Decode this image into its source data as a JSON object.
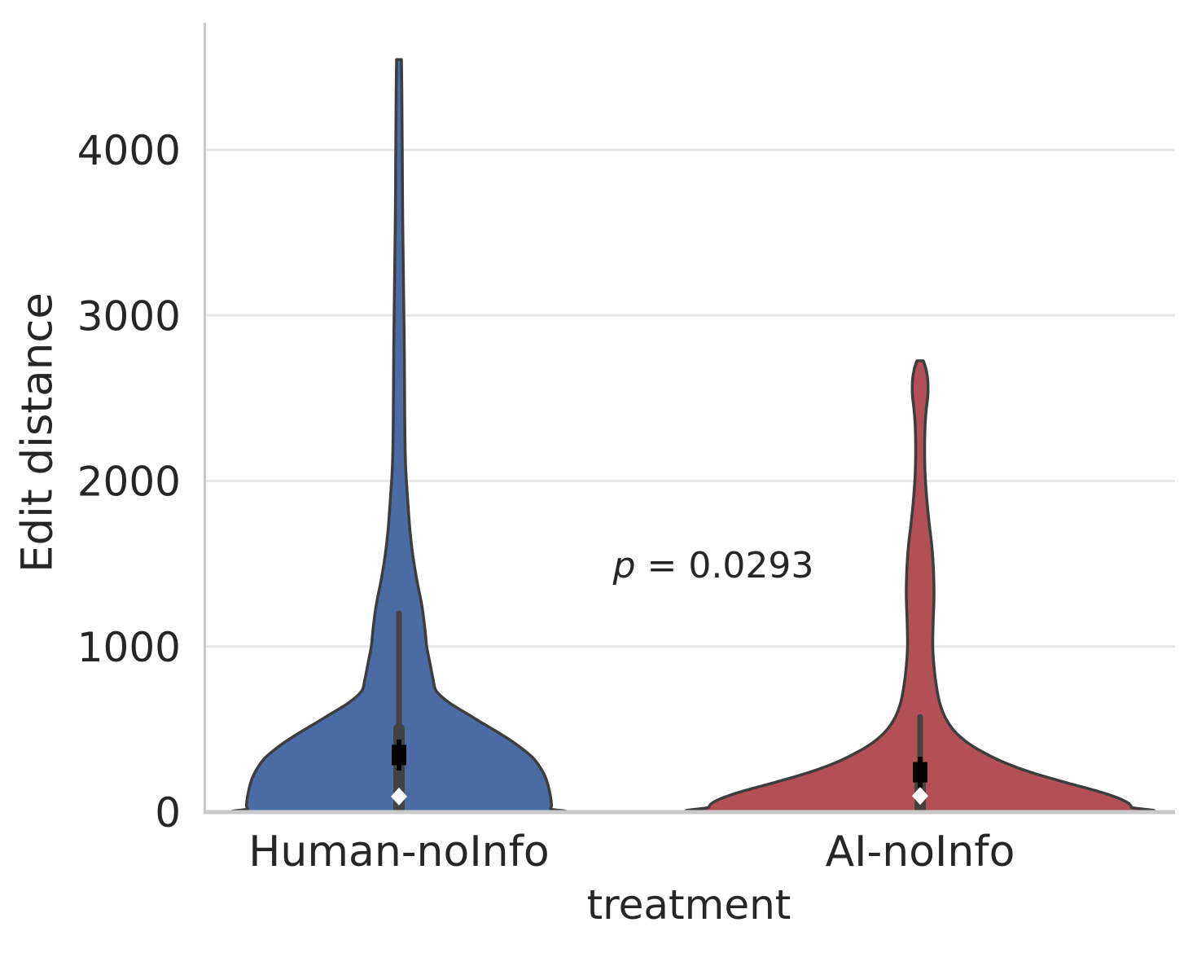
{
  "chart_data": {
    "type": "violin",
    "title": "",
    "xlabel": "treatment",
    "ylabel": "Edit distance",
    "categories": [
      "Human-noInfo",
      "AI-noInfo"
    ],
    "yticks": [
      0,
      1000,
      2000,
      3000,
      4000
    ],
    "ytick_labels": [
      "0",
      "1000",
      "2000",
      "3000",
      "4000"
    ],
    "ylim": [
      0,
      4768
    ],
    "grid": "horizontal",
    "legend": "none",
    "annotation": {
      "variable": "p",
      "rest": " = 0.0293",
      "p_value": 0.0293
    },
    "colors": {
      "outline": "#3d3d3d",
      "box": "#424242",
      "whisker": "#424242",
      "grid": "#e7e7e7",
      "spine": "#c9c9c9",
      "text": "#262626",
      "mean_marker": "#000000",
      "median_marker": "#ffffff",
      "background": "#ffffff"
    },
    "series": [
      {
        "name": "Human-noInfo",
        "fill_color": "#4a6ba3",
        "stats": {
          "min": 0,
          "max": 4546,
          "whisker_top": 1200,
          "box_top": 536,
          "box_bottom": 0,
          "mean": 345,
          "median": 94
        },
        "density_profile": [
          [
            4546,
            3
          ],
          [
            4350,
            3.5
          ],
          [
            4000,
            4
          ],
          [
            3600,
            4.5
          ],
          [
            3200,
            5.5
          ],
          [
            2800,
            6.5
          ],
          [
            2400,
            7
          ],
          [
            2100,
            8
          ],
          [
            1900,
            10.5
          ],
          [
            1700,
            13.5
          ],
          [
            1550,
            17
          ],
          [
            1400,
            22
          ],
          [
            1250,
            28
          ],
          [
            1100,
            32
          ],
          [
            1000,
            34
          ],
          [
            900,
            38
          ],
          [
            800,
            42
          ],
          [
            730,
            46
          ],
          [
            660,
            62
          ],
          [
            590,
            85
          ],
          [
            530,
            105
          ],
          [
            480,
            122
          ],
          [
            430,
            138
          ],
          [
            380,
            152
          ],
          [
            330,
            164
          ],
          [
            280,
            172
          ],
          [
            230,
            178
          ],
          [
            180,
            182
          ],
          [
            120,
            185
          ],
          [
            60,
            187
          ],
          [
            20,
            186
          ],
          [
            0,
            176
          ]
        ]
      },
      {
        "name": "AI-noInfo",
        "fill_color": "#b25055",
        "stats": {
          "min": 0,
          "max": 2726,
          "whisker_top": 575,
          "box_top": 305,
          "box_bottom": 0,
          "mean": 241,
          "median": 98
        },
        "density_profile": [
          [
            2726,
            4
          ],
          [
            2670,
            7.5
          ],
          [
            2600,
            9.5
          ],
          [
            2520,
            9.5
          ],
          [
            2430,
            7.5
          ],
          [
            2330,
            6
          ],
          [
            2200,
            5.5
          ],
          [
            2050,
            6
          ],
          [
            1900,
            8
          ],
          [
            1750,
            11
          ],
          [
            1600,
            14.5
          ],
          [
            1450,
            16.5
          ],
          [
            1300,
            17
          ],
          [
            1150,
            16
          ],
          [
            1000,
            15.5
          ],
          [
            880,
            17
          ],
          [
            760,
            20
          ],
          [
            660,
            24
          ],
          [
            570,
            31
          ],
          [
            490,
            42
          ],
          [
            420,
            58
          ],
          [
            360,
            78
          ],
          [
            300,
            103
          ],
          [
            240,
            136
          ],
          [
            180,
            178
          ],
          [
            120,
            222
          ],
          [
            70,
            250
          ],
          [
            30,
            259
          ],
          [
            0,
            247
          ]
        ]
      }
    ]
  }
}
